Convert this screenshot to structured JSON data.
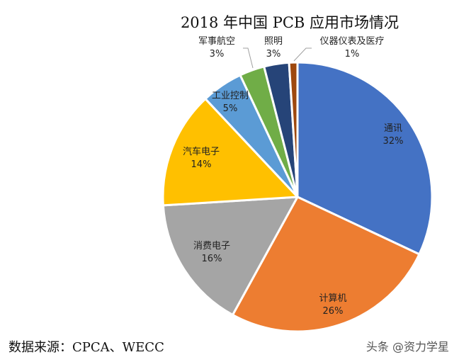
{
  "title": "2018 年中国 PCB 应用市场情况",
  "source": "数据来源：CPCA、WECC",
  "watermark": "头条 @资力学星",
  "chart_data": {
    "type": "pie",
    "title": "2018 年中国 PCB 应用市场情况",
    "start_angle": "12 o'clock, clockwise",
    "categories": [
      "通讯",
      "计算机",
      "消费电子",
      "汽车电子",
      "工业控制",
      "军事航空",
      "照明",
      "仪器仪表及医疗"
    ],
    "values": [
      32,
      26,
      16,
      14,
      5,
      3,
      3,
      1
    ],
    "labels": [
      "32%",
      "26%",
      "16%",
      "14%",
      "5%",
      "3%",
      "3%",
      "1%"
    ],
    "colors": [
      "#4472C4",
      "#ED7D31",
      "#A5A5A5",
      "#FFC000",
      "#5B9BD5",
      "#70AD47",
      "#264478",
      "#9E480E"
    ],
    "legend": "none (data labels on slices)"
  },
  "labels": [
    {
      "name": "通讯",
      "pct": "32%"
    },
    {
      "name": "计算机",
      "pct": "26%"
    },
    {
      "name": "消费电子",
      "pct": "16%"
    },
    {
      "name": "汽车电子",
      "pct": "14%"
    },
    {
      "name": "工业控制",
      "pct": "5%"
    },
    {
      "name": "军事航空",
      "pct": "3%"
    },
    {
      "name": "照明",
      "pct": "3%"
    },
    {
      "name": "仪器仪表及医疗",
      "pct": "1%"
    }
  ]
}
